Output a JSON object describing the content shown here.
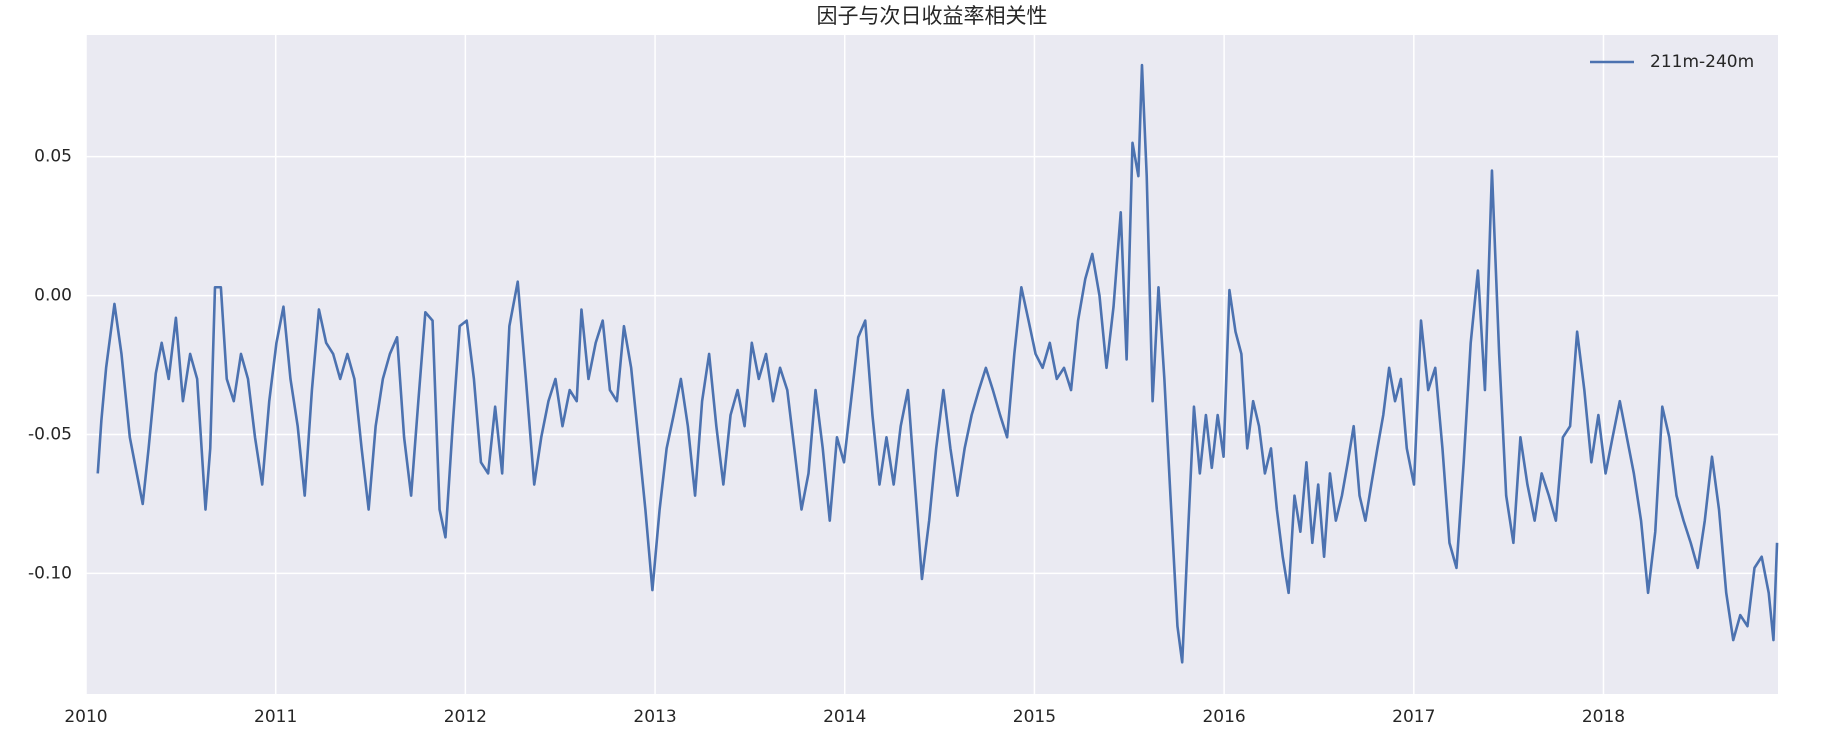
{
  "chart_data": {
    "type": "line",
    "title": "因子与次日收益率相关性",
    "x": [
      2010.062,
      2010.081,
      2010.106,
      2010.15,
      2010.187,
      2010.231,
      2010.262,
      2010.299,
      2010.33,
      2010.368,
      2010.399,
      2010.436,
      2010.474,
      2010.511,
      2010.549,
      2010.586,
      2010.63,
      2010.655,
      2010.68,
      2010.711,
      2010.742,
      2010.779,
      2010.817,
      2010.854,
      2010.891,
      2010.929,
      2010.966,
      2011.004,
      2011.041,
      2011.078,
      2011.116,
      2011.153,
      2011.191,
      2011.228,
      2011.266,
      2011.303,
      2011.34,
      2011.378,
      2011.415,
      2011.453,
      2011.49,
      2011.527,
      2011.565,
      2011.602,
      2011.64,
      2011.677,
      2011.714,
      2011.752,
      2011.789,
      2011.827,
      2011.864,
      2011.895,
      2011.933,
      2011.97,
      2012.007,
      2012.045,
      2012.082,
      2012.12,
      2012.157,
      2012.194,
      2012.232,
      2012.276,
      2012.319,
      2012.363,
      2012.4,
      2012.438,
      2012.475,
      2012.512,
      2012.55,
      2012.587,
      2012.612,
      2012.649,
      2012.687,
      2012.724,
      2012.762,
      2012.799,
      2012.836,
      2012.874,
      2012.911,
      2012.949,
      2012.986,
      2013.024,
      2013.061,
      2013.098,
      2013.136,
      2013.173,
      2013.211,
      2013.248,
      2013.285,
      2013.323,
      2013.36,
      2013.398,
      2013.435,
      2013.472,
      2013.51,
      2013.547,
      2013.585,
      2013.622,
      2013.659,
      2013.697,
      2013.734,
      2013.772,
      2013.809,
      2013.846,
      2013.884,
      2013.921,
      2013.959,
      2013.996,
      2014.033,
      2014.071,
      2014.108,
      2014.146,
      2014.183,
      2014.22,
      2014.258,
      2014.295,
      2014.333,
      2014.37,
      2014.407,
      2014.445,
      2014.482,
      2014.52,
      2014.557,
      2014.594,
      2014.632,
      2014.669,
      2014.707,
      2014.744,
      2014.781,
      2014.819,
      2014.856,
      2014.894,
      2014.931,
      2014.969,
      2015.006,
      2015.043,
      2015.081,
      2015.118,
      2015.156,
      2015.193,
      2015.23,
      2015.268,
      2015.305,
      2015.343,
      2015.38,
      2015.417,
      2015.455,
      2015.486,
      2015.517,
      2015.548,
      2015.567,
      2015.592,
      2015.623,
      2015.654,
      2015.685,
      2015.717,
      2015.754,
      2015.779,
      2015.81,
      2015.841,
      2015.872,
      2015.904,
      2015.935,
      2015.966,
      2015.997,
      2016.028,
      2016.06,
      2016.091,
      2016.122,
      2016.153,
      2016.184,
      2016.215,
      2016.247,
      2016.278,
      2016.309,
      2016.34,
      2016.371,
      2016.402,
      2016.434,
      2016.465,
      2016.496,
      2016.527,
      2016.558,
      2016.589,
      2016.621,
      2016.652,
      2016.683,
      2016.714,
      2016.745,
      2016.776,
      2016.808,
      2016.839,
      2016.87,
      2016.901,
      2016.932,
      2016.963,
      2017.001,
      2017.038,
      2017.076,
      2017.113,
      2017.151,
      2017.188,
      2017.225,
      2017.263,
      2017.3,
      2017.338,
      2017.375,
      2017.412,
      2017.45,
      2017.487,
      2017.525,
      2017.562,
      2017.599,
      2017.637,
      2017.674,
      2017.712,
      2017.749,
      2017.786,
      2017.824,
      2017.861,
      2017.899,
      2017.936,
      2017.973,
      2018.011,
      2018.048,
      2018.086,
      2018.123,
      2018.16,
      2018.198,
      2018.235,
      2018.273,
      2018.31,
      2018.347,
      2018.385,
      2018.422,
      2018.46,
      2018.497,
      2018.534,
      2018.572,
      2018.609,
      2018.647,
      2018.684,
      2018.721,
      2018.759,
      2018.796,
      2018.834,
      2018.871,
      2018.896,
      2018.915
    ],
    "series": [
      {
        "name": "211m-240m",
        "color": "#4c72b0",
        "values": [
          -0.064,
          -0.045,
          -0.026,
          -0.003,
          -0.021,
          -0.051,
          -0.062,
          -0.075,
          -0.055,
          -0.028,
          -0.017,
          -0.03,
          -0.008,
          -0.038,
          -0.021,
          -0.03,
          -0.077,
          -0.055,
          0.003,
          0.003,
          -0.03,
          -0.038,
          -0.021,
          -0.03,
          -0.051,
          -0.068,
          -0.038,
          -0.017,
          -0.004,
          -0.03,
          -0.047,
          -0.072,
          -0.034,
          -0.005,
          -0.017,
          -0.021,
          -0.03,
          -0.021,
          -0.03,
          -0.055,
          -0.077,
          -0.047,
          -0.03,
          -0.021,
          -0.015,
          -0.051,
          -0.072,
          -0.038,
          -0.006,
          -0.009,
          -0.077,
          -0.087,
          -0.047,
          -0.011,
          -0.009,
          -0.03,
          -0.06,
          -0.064,
          -0.04,
          -0.064,
          -0.011,
          0.005,
          -0.03,
          -0.068,
          -0.051,
          -0.038,
          -0.03,
          -0.047,
          -0.034,
          -0.038,
          -0.005,
          -0.03,
          -0.017,
          -0.009,
          -0.034,
          -0.038,
          -0.011,
          -0.026,
          -0.051,
          -0.077,
          -0.106,
          -0.077,
          -0.055,
          -0.043,
          -0.03,
          -0.047,
          -0.072,
          -0.038,
          -0.021,
          -0.047,
          -0.068,
          -0.043,
          -0.034,
          -0.047,
          -0.017,
          -0.03,
          -0.021,
          -0.038,
          -0.026,
          -0.034,
          -0.055,
          -0.077,
          -0.064,
          -0.034,
          -0.055,
          -0.081,
          -0.051,
          -0.06,
          -0.038,
          -0.015,
          -0.009,
          -0.043,
          -0.068,
          -0.051,
          -0.068,
          -0.047,
          -0.034,
          -0.068,
          -0.102,
          -0.081,
          -0.055,
          -0.034,
          -0.055,
          -0.072,
          -0.055,
          -0.043,
          -0.034,
          -0.026,
          -0.034,
          -0.043,
          -0.051,
          -0.021,
          0.003,
          -0.009,
          -0.021,
          -0.026,
          -0.017,
          -0.03,
          -0.026,
          -0.034,
          -0.009,
          0.006,
          0.015,
          0.0,
          -0.026,
          -0.004,
          0.03,
          -0.023,
          0.055,
          0.043,
          0.083,
          0.043,
          -0.038,
          0.003,
          -0.03,
          -0.072,
          -0.119,
          -0.132,
          -0.085,
          -0.04,
          -0.064,
          -0.043,
          -0.062,
          -0.043,
          -0.058,
          0.002,
          -0.013,
          -0.021,
          -0.055,
          -0.038,
          -0.047,
          -0.064,
          -0.055,
          -0.077,
          -0.094,
          -0.107,
          -0.072,
          -0.085,
          -0.06,
          -0.089,
          -0.068,
          -0.094,
          -0.064,
          -0.081,
          -0.072,
          -0.06,
          -0.047,
          -0.072,
          -0.081,
          -0.068,
          -0.055,
          -0.043,
          -0.026,
          -0.038,
          -0.03,
          -0.055,
          -0.068,
          -0.009,
          -0.034,
          -0.026,
          -0.055,
          -0.089,
          -0.098,
          -0.06,
          -0.017,
          0.009,
          -0.034,
          0.045,
          -0.021,
          -0.072,
          -0.089,
          -0.051,
          -0.068,
          -0.081,
          -0.064,
          -0.072,
          -0.081,
          -0.051,
          -0.047,
          -0.013,
          -0.034,
          -0.06,
          -0.043,
          -0.064,
          -0.051,
          -0.038,
          -0.051,
          -0.064,
          -0.081,
          -0.107,
          -0.085,
          -0.04,
          -0.051,
          -0.072,
          -0.081,
          -0.089,
          -0.098,
          -0.081,
          -0.058,
          -0.077,
          -0.107,
          -0.124,
          -0.115,
          -0.119,
          -0.098,
          -0.094,
          -0.107,
          -0.124,
          -0.089
        ]
      }
    ],
    "xlim": [
      2010,
      2018.92
    ],
    "xticks": [
      2010,
      2011,
      2012,
      2013,
      2014,
      2015,
      2016,
      2017,
      2018
    ],
    "ylim": [
      -0.1434,
      0.0938
    ],
    "yticks": [
      {
        "value": -0.1,
        "label": "-0.10"
      },
      {
        "value": -0.05,
        "label": "-0.05"
      },
      {
        "value": 0,
        "label": "0.00"
      },
      {
        "value": 0.05,
        "label": "0.05"
      }
    ],
    "grid": true,
    "legend": "upper right",
    "background": "#eaeaf2"
  }
}
